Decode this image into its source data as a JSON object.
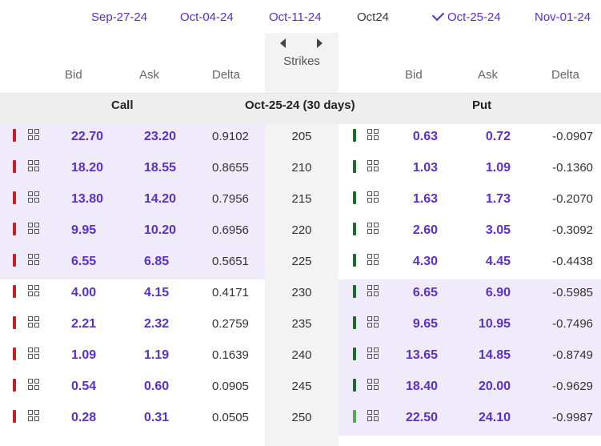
{
  "expirations": [
    {
      "label": "Sep-27-24",
      "selected": false,
      "link": true
    },
    {
      "label": "Oct-04-24",
      "selected": false,
      "link": true
    },
    {
      "label": "Oct-11-24",
      "selected": false,
      "link": true
    },
    {
      "label": "Oct24",
      "selected": false,
      "link": false
    },
    {
      "label": "Oct-25-24",
      "selected": true,
      "link": true
    },
    {
      "label": "Nov-01-24",
      "selected": false,
      "link": true
    }
  ],
  "strikes_label": "Strikes",
  "columns": {
    "bid": "Bid",
    "ask": "Ask",
    "delta": "Delta"
  },
  "band": {
    "call": "Call",
    "expiry": "Oct-25-24 (30 days)",
    "put": "Put"
  },
  "colors": {
    "accent": "#5b2fc9",
    "highlight": "#efebfb",
    "red": "#c62027",
    "green": "#1e6a2c",
    "light_green": "#5aa55e"
  },
  "rows": [
    {
      "strike": "205",
      "call": {
        "bid": "22.70",
        "ask": "23.20",
        "delta": "0.9102",
        "itm": true
      },
      "put": {
        "bid": "0.63",
        "ask": "0.72",
        "delta": "-0.0907",
        "itm": false
      }
    },
    {
      "strike": "210",
      "call": {
        "bid": "18.20",
        "ask": "18.55",
        "delta": "0.8655",
        "itm": true
      },
      "put": {
        "bid": "1.03",
        "ask": "1.09",
        "delta": "-0.1360",
        "itm": false
      }
    },
    {
      "strike": "215",
      "call": {
        "bid": "13.80",
        "ask": "14.20",
        "delta": "0.7956",
        "itm": true
      },
      "put": {
        "bid": "1.63",
        "ask": "1.73",
        "delta": "-0.2070",
        "itm": false
      }
    },
    {
      "strike": "220",
      "call": {
        "bid": "9.95",
        "ask": "10.20",
        "delta": "0.6956",
        "itm": true
      },
      "put": {
        "bid": "2.60",
        "ask": "3.05",
        "delta": "-0.3092",
        "itm": false
      }
    },
    {
      "strike": "225",
      "call": {
        "bid": "6.55",
        "ask": "6.85",
        "delta": "0.5651",
        "itm": true
      },
      "put": {
        "bid": "4.30",
        "ask": "4.45",
        "delta": "-0.4438",
        "itm": false
      }
    },
    {
      "strike": "230",
      "call": {
        "bid": "4.00",
        "ask": "4.15",
        "delta": "0.4171",
        "itm": false
      },
      "put": {
        "bid": "6.65",
        "ask": "6.90",
        "delta": "-0.5985",
        "itm": true
      }
    },
    {
      "strike": "235",
      "call": {
        "bid": "2.21",
        "ask": "2.32",
        "delta": "0.2759",
        "itm": false
      },
      "put": {
        "bid": "9.65",
        "ask": "10.95",
        "delta": "-0.7496",
        "itm": true
      }
    },
    {
      "strike": "240",
      "call": {
        "bid": "1.09",
        "ask": "1.19",
        "delta": "0.1639",
        "itm": false
      },
      "put": {
        "bid": "13.65",
        "ask": "14.85",
        "delta": "-0.8749",
        "itm": true
      }
    },
    {
      "strike": "245",
      "call": {
        "bid": "0.54",
        "ask": "0.60",
        "delta": "0.0905",
        "itm": false
      },
      "put": {
        "bid": "18.40",
        "ask": "20.00",
        "delta": "-0.9629",
        "itm": true
      }
    },
    {
      "strike": "250",
      "call": {
        "bid": "0.28",
        "ask": "0.31",
        "delta": "0.0505",
        "itm": false
      },
      "put": {
        "bid": "22.50",
        "ask": "24.10",
        "delta": "-0.9987",
        "itm": true,
        "bar": "light"
      }
    }
  ]
}
